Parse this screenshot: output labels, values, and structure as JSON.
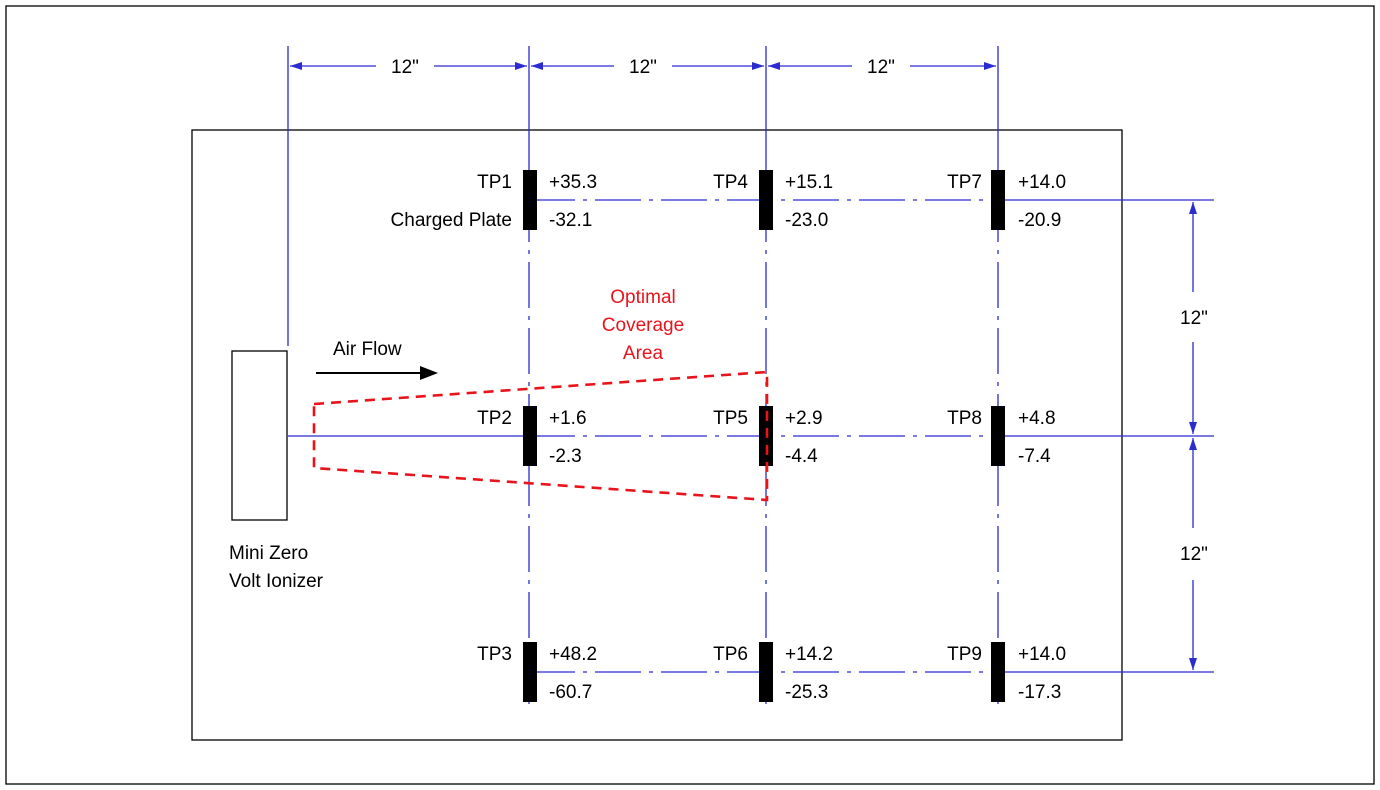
{
  "dimensions": {
    "top_spacing_1": "12\"",
    "top_spacing_2": "12\"",
    "top_spacing_3": "12\"",
    "right_spacing_1": "12\"",
    "right_spacing_2": "12\""
  },
  "ionizer_label": {
    "line1": "Mini Zero",
    "line2": "Volt Ionizer"
  },
  "air_flow_label": "Air Flow",
  "coverage_label": {
    "line1": "Optimal",
    "line2": "Coverage",
    "line3": "Area"
  },
  "charged_plate_label": "Charged Plate",
  "test_points": [
    {
      "id": "TP1",
      "positive": "+35.3",
      "negative": "-32.1"
    },
    {
      "id": "TP2",
      "positive": "+1.6",
      "negative": "-2.3"
    },
    {
      "id": "TP3",
      "positive": "+48.2",
      "negative": "-60.7"
    },
    {
      "id": "TP4",
      "positive": "+15.1",
      "negative": "-23.0"
    },
    {
      "id": "TP5",
      "positive": "+2.9",
      "negative": "-4.4"
    },
    {
      "id": "TP6",
      "positive": "+14.2",
      "negative": "-25.3"
    },
    {
      "id": "TP7",
      "positive": "+14.0",
      "negative": "-20.9"
    },
    {
      "id": "TP8",
      "positive": "+4.8",
      "negative": "-7.4"
    },
    {
      "id": "TP9",
      "positive": "+14.0",
      "negative": "-17.3"
    }
  ],
  "colors": {
    "dimension_lines": "#2b2bd0",
    "coverage_area": "#e8141c",
    "outline": "#000000"
  }
}
